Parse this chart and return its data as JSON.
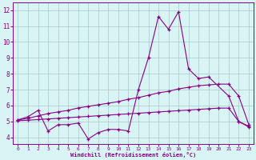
{
  "x": [
    0,
    1,
    2,
    3,
    4,
    5,
    6,
    7,
    8,
    9,
    10,
    11,
    12,
    13,
    14,
    15,
    16,
    17,
    18,
    19,
    20,
    21,
    22,
    23
  ],
  "line1": [
    5.1,
    5.3,
    5.7,
    4.4,
    4.8,
    4.8,
    4.9,
    3.9,
    4.3,
    4.5,
    4.5,
    4.4,
    7.0,
    9.0,
    11.6,
    10.8,
    11.9,
    8.3,
    7.7,
    7.8,
    null,
    6.6,
    5.0,
    4.7
  ],
  "line3": [
    5.1,
    5.2,
    5.35,
    5.5,
    5.6,
    5.7,
    5.85,
    5.95,
    6.05,
    6.15,
    6.25,
    6.4,
    6.5,
    6.65,
    6.8,
    6.9,
    7.05,
    7.15,
    7.25,
    7.3,
    7.35,
    7.35,
    6.6,
    4.8
  ],
  "line4": [
    5.05,
    5.08,
    5.12,
    5.16,
    5.2,
    5.24,
    5.28,
    5.32,
    5.36,
    5.4,
    5.44,
    5.48,
    5.52,
    5.56,
    5.6,
    5.64,
    5.68,
    5.72,
    5.76,
    5.8,
    5.84,
    5.84,
    5.0,
    4.65
  ],
  "line_color": "#880088",
  "bg_color": "#d8f4f4",
  "grid_color": "#a8c8c8",
  "xlabel": "Windchill (Refroidissement éolien,°C)",
  "xlim": [
    -0.5,
    23.5
  ],
  "ylim": [
    3.6,
    12.5
  ],
  "yticks": [
    4,
    5,
    6,
    7,
    8,
    9,
    10,
    11,
    12
  ],
  "xticks": [
    0,
    1,
    2,
    3,
    4,
    5,
    6,
    7,
    8,
    9,
    10,
    11,
    12,
    13,
    14,
    15,
    16,
    17,
    18,
    19,
    20,
    21,
    22,
    23
  ]
}
